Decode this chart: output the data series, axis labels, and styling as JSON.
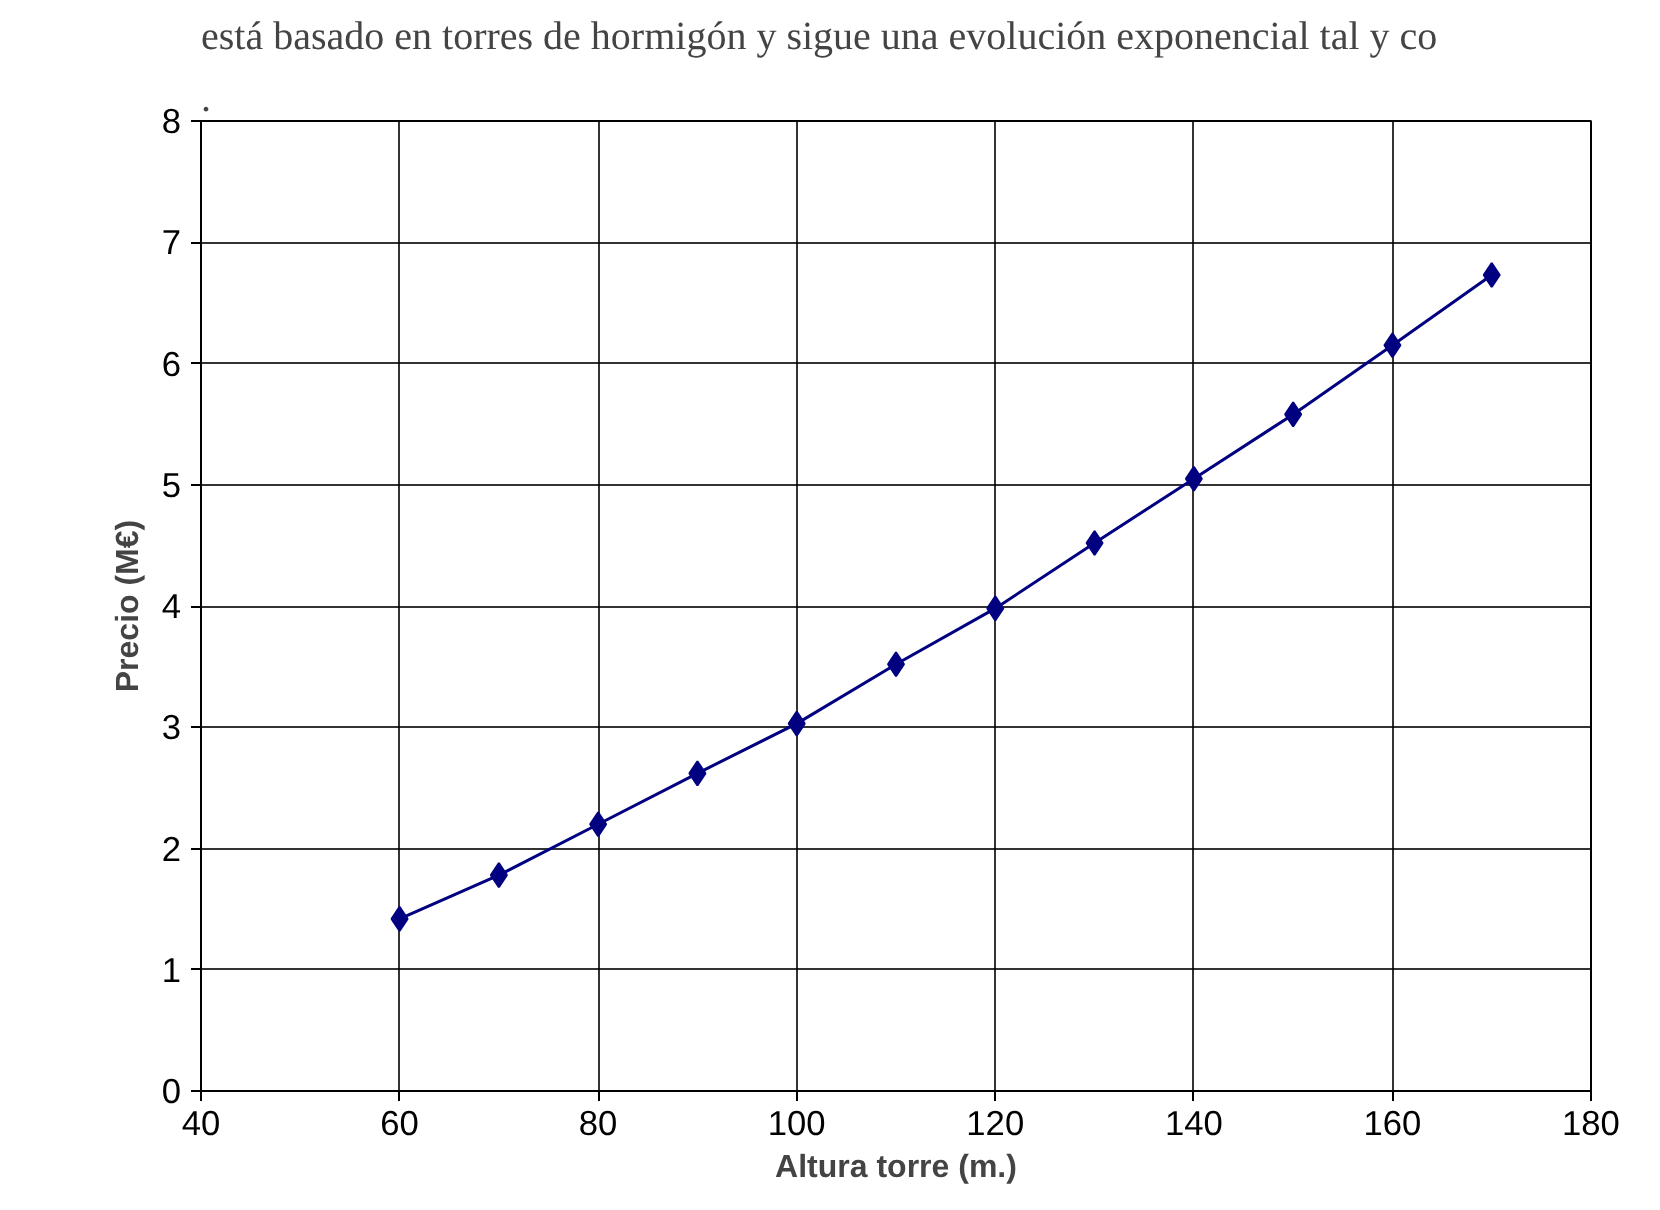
{
  "chart_data": {
    "type": "line",
    "annotations": [
      "está basado en torres de hormigón y sigue una evolución exponencial tal y co",
      "."
    ],
    "xlabel": "Altura torre (m.)",
    "ylabel": "Precio (M€)",
    "x": [
      60,
      70,
      80,
      90,
      100,
      110,
      120,
      130,
      140,
      150,
      160,
      170
    ],
    "series": [
      {
        "color": "#000080",
        "values": [
          1.42,
          1.78,
          2.2,
          2.62,
          3.03,
          3.52,
          3.98,
          4.52,
          5.05,
          5.58,
          6.15,
          6.73
        ]
      }
    ],
    "xlim": [
      40,
      180
    ],
    "xticks": [
      40,
      60,
      80,
      100,
      120,
      140,
      160,
      180
    ],
    "ylim": [
      0,
      8
    ],
    "yticks": [
      0,
      1,
      2,
      3,
      4,
      5,
      6,
      7,
      8
    ],
    "grid": true,
    "marker": "diamond",
    "line_style": "solid"
  }
}
